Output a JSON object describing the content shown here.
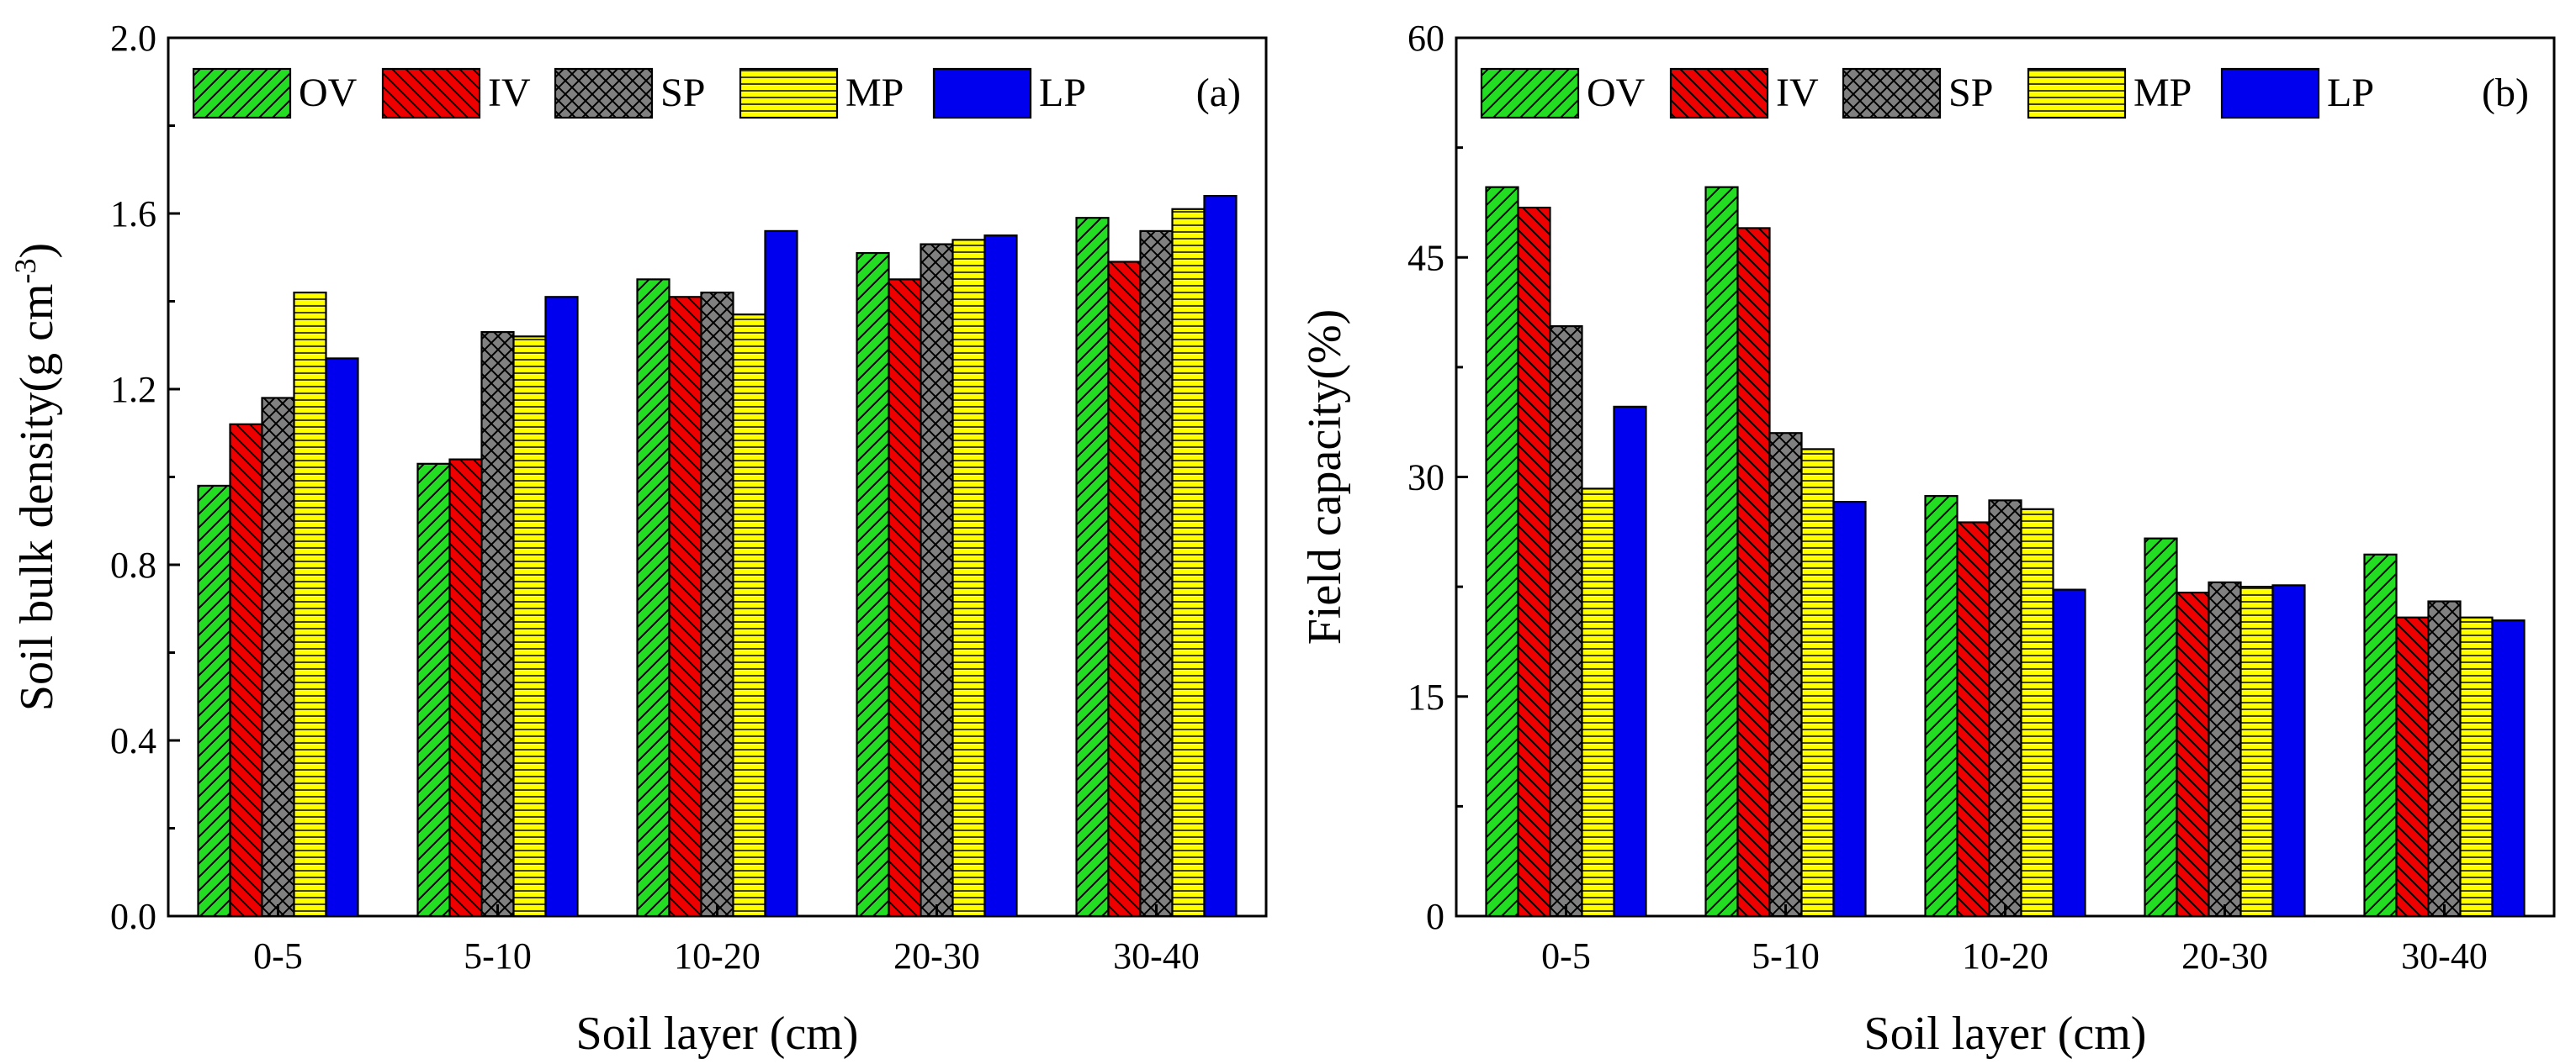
{
  "chart_data": [
    {
      "type": "bar",
      "panel_label": "(a)",
      "title": "",
      "xlabel": "Soil layer (cm)",
      "ylabel": "Soil bulk density(g cm⁻³)",
      "ylim": [
        0.0,
        2.0
      ],
      "yticks": [
        "0.0",
        "0.4",
        "0.8",
        "1.2",
        "1.6",
        "2.0"
      ],
      "categories": [
        "0-5",
        "5-10",
        "10-20",
        "20-30",
        "30-40"
      ],
      "legend_position": "top",
      "series": [
        {
          "name": "OV",
          "values": [
            0.98,
            1.03,
            1.45,
            1.51,
            1.59
          ]
        },
        {
          "name": "IV",
          "values": [
            1.12,
            1.04,
            1.41,
            1.45,
            1.49
          ]
        },
        {
          "name": "SP",
          "values": [
            1.18,
            1.33,
            1.42,
            1.53,
            1.56
          ]
        },
        {
          "name": "MP",
          "values": [
            1.42,
            1.32,
            1.37,
            1.54,
            1.61
          ]
        },
        {
          "name": "LP",
          "values": [
            1.27,
            1.41,
            1.56,
            1.55,
            1.64
          ]
        }
      ]
    },
    {
      "type": "bar",
      "panel_label": "(b)",
      "title": "",
      "xlabel": "Soil layer (cm)",
      "ylabel": "Field capacity(%)",
      "ylim": [
        0,
        60
      ],
      "yticks": [
        "0",
        "15",
        "30",
        "45",
        "60"
      ],
      "categories": [
        "0-5",
        "5-10",
        "10-20",
        "20-30",
        "30-40"
      ],
      "legend_position": "top",
      "series": [
        {
          "name": "OV",
          "values": [
            49.8,
            49.8,
            28.7,
            25.8,
            24.7
          ]
        },
        {
          "name": "IV",
          "values": [
            48.4,
            47.0,
            26.9,
            22.1,
            20.4
          ]
        },
        {
          "name": "SP",
          "values": [
            40.3,
            33.0,
            28.4,
            22.8,
            21.5
          ]
        },
        {
          "name": "MP",
          "values": [
            29.2,
            31.9,
            27.8,
            22.5,
            20.4
          ]
        },
        {
          "name": "LP",
          "values": [
            34.8,
            28.3,
            22.3,
            22.6,
            20.2
          ]
        }
      ]
    }
  ],
  "series_style": [
    {
      "name": "OV",
      "fill": "#22dd22",
      "pattern": "diag-up"
    },
    {
      "name": "IV",
      "fill": "#ee0000",
      "pattern": "diag-down"
    },
    {
      "name": "SP",
      "fill": "#808080",
      "pattern": "crosshatch"
    },
    {
      "name": "MP",
      "fill": "#ffff00",
      "pattern": "horizontal"
    },
    {
      "name": "LP",
      "fill": "#0000ee",
      "pattern": "solid"
    }
  ]
}
